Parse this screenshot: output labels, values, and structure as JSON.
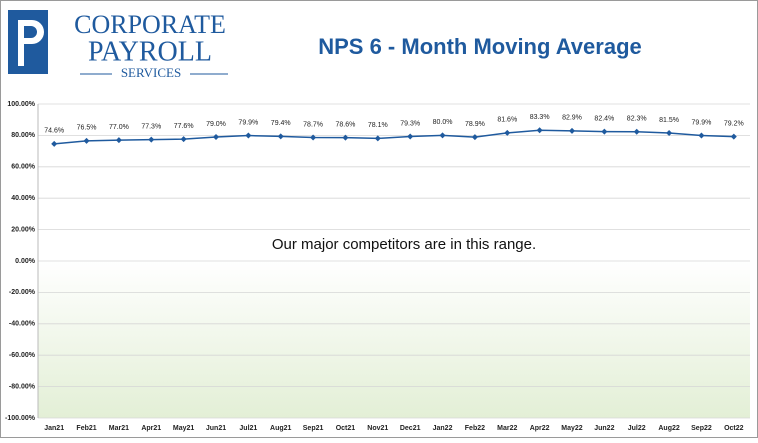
{
  "logo": {
    "line1": "CORPORATE",
    "line2": "PAYROLL",
    "line3": "SERVICES"
  },
  "chart_data": {
    "type": "line",
    "title": "NPS 6 - Month Moving Average",
    "annotation": "Our major competitors are in this range.",
    "categories": [
      "Jan21",
      "Feb21",
      "Mar21",
      "Apr21",
      "May21",
      "Jun21",
      "Jul21",
      "Aug21",
      "Sep21",
      "Oct21",
      "Nov21",
      "Dec21",
      "Jan22",
      "Feb22",
      "Mar22",
      "Apr22",
      "May22",
      "Jun22",
      "Jul22",
      "Aug22",
      "Sep22",
      "Oct22"
    ],
    "series": [
      {
        "name": "NPS",
        "color": "#1f5a9e",
        "values": [
          74.6,
          76.5,
          77.0,
          77.3,
          77.6,
          79.0,
          79.9,
          79.4,
          78.7,
          78.6,
          78.1,
          79.3,
          80.0,
          78.9,
          81.6,
          83.3,
          82.9,
          82.4,
          82.3,
          81.5,
          79.9,
          79.2
        ],
        "value_labels": [
          "74.6%",
          "76.5%",
          "77.0%",
          "77.3%",
          "77.6%",
          "79.0%",
          "79.9%",
          "79.4%",
          "78.7%",
          "78.6%",
          "78.1%",
          "79.3%",
          "80.0%",
          "78.9%",
          "81.6%",
          "83.3%",
          "82.9%",
          "82.4%",
          "82.3%",
          "81.5%",
          "79.9%",
          "79.2%"
        ]
      }
    ],
    "ylim": [
      -100,
      100
    ],
    "yticks": [
      {
        "value": 100,
        "label": "100.00%",
        "color": "#1a9a5a"
      },
      {
        "value": 80,
        "label": "80.00%"
      },
      {
        "value": 60,
        "label": "60.00%"
      },
      {
        "value": 40,
        "label": "40.00%"
      },
      {
        "value": 20,
        "label": "20.00%"
      },
      {
        "value": 0,
        "label": "0.00%",
        "color": "#4a90c8"
      },
      {
        "value": -20,
        "label": "-20.00%"
      },
      {
        "value": -40,
        "label": "-40.00%"
      },
      {
        "value": -60,
        "label": "-60.00%"
      },
      {
        "value": -80,
        "label": "-80.00%"
      },
      {
        "value": -100,
        "label": "-100.00%",
        "color": "#c0282d"
      }
    ],
    "grid": true,
    "negative_shading": "#e3efd6"
  }
}
